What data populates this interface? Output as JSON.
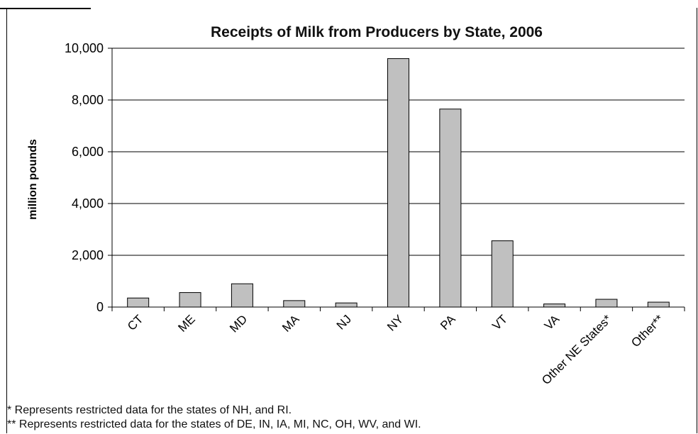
{
  "chart_data": {
    "type": "bar",
    "title": "Receipts of Milk from Producers by State, 2006",
    "xlabel": "",
    "ylabel": "million pounds",
    "ylim": [
      0,
      10000
    ],
    "yticks": [
      "0",
      "2,000",
      "4,000",
      "6,000",
      "8,000",
      "10,000"
    ],
    "ytick_values": [
      0,
      2000,
      4000,
      6000,
      8000,
      10000
    ],
    "categories": [
      "CT",
      "ME",
      "MD",
      "MA",
      "NJ",
      "NY",
      "PA",
      "VT",
      "VA",
      "Other NE States*",
      "Other**"
    ],
    "values": [
      350,
      560,
      900,
      250,
      160,
      9600,
      7650,
      2560,
      120,
      300,
      190
    ],
    "grid": true,
    "legend": "none",
    "bar_color": "#c0c0c0"
  },
  "footnotes": [
    "* Represents restricted data for the states of NH, and RI.",
    "** Represents restricted data for the states of DE, IN, IA, MI, NC, OH, WV, and WI."
  ]
}
